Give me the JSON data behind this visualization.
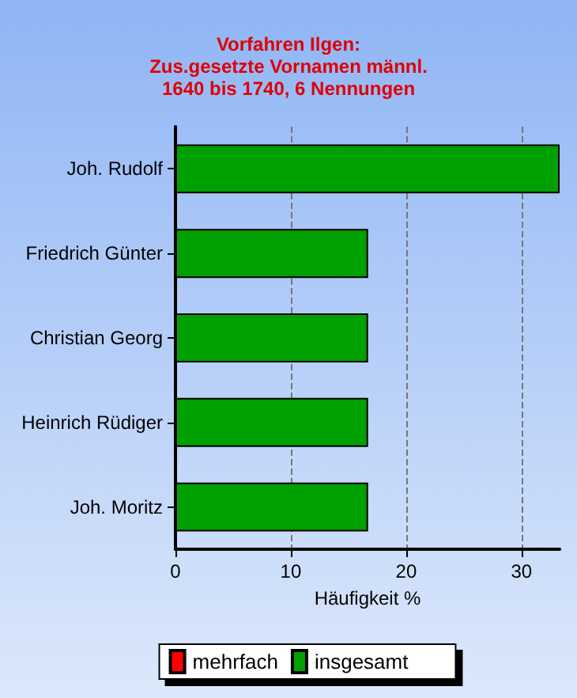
{
  "chart_data": {
    "type": "bar",
    "orientation": "horizontal",
    "title": "Vorfahren Ilgen:\nZus.gesetzte Vornamen männl.\n1640 bis 1740, 6 Nennungen",
    "xlabel": "Häufigkeit %",
    "categories": [
      "Joh. Rudolf",
      "Friedrich Günter",
      "Christian Georg",
      "Heinrich Rüdiger",
      "Joh. Moritz"
    ],
    "series": [
      {
        "name": "mehrfach",
        "color": "#ff0000",
        "values": [
          null,
          null,
          null,
          null,
          null
        ]
      },
      {
        "name": "insgesamt",
        "color": "#00a000",
        "values": [
          33.3,
          16.7,
          16.7,
          16.7,
          16.7
        ]
      }
    ],
    "xlim": [
      0,
      33.3
    ],
    "xticks": [
      0,
      10,
      20,
      30
    ],
    "grid": "x",
    "legend": "bottom"
  }
}
